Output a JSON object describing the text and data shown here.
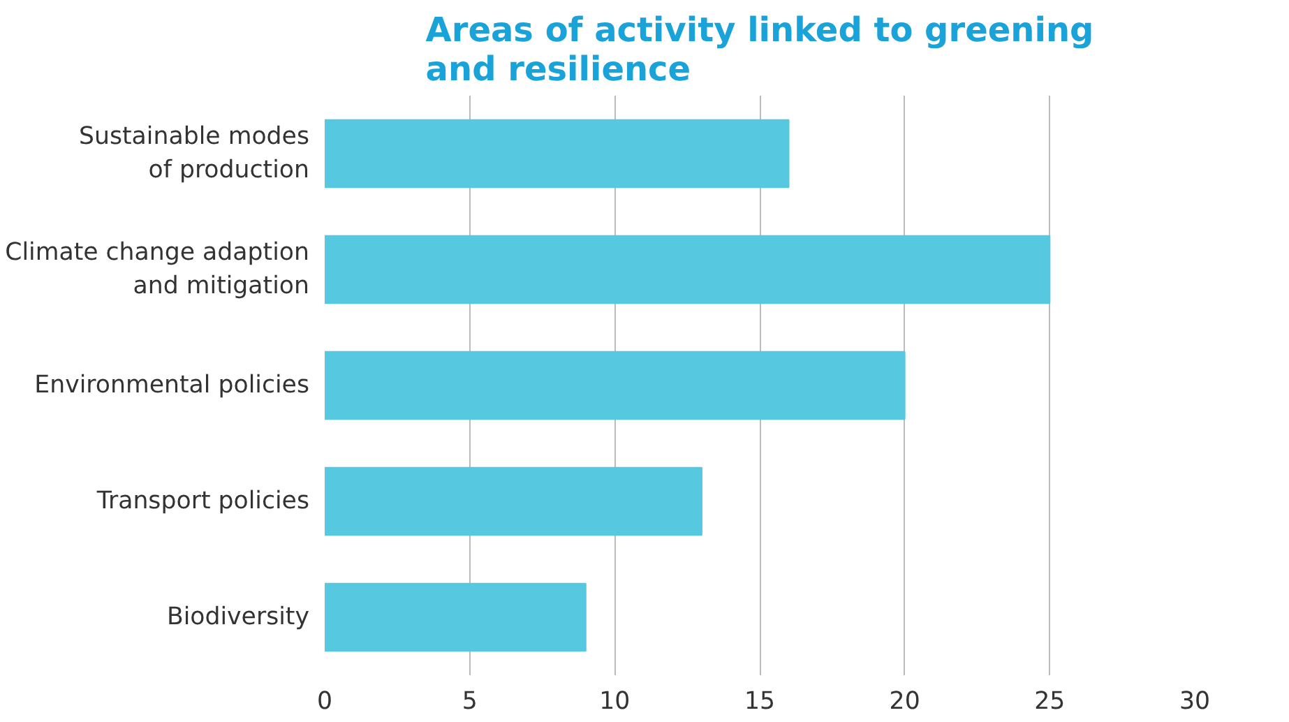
{
  "chart_data": {
    "type": "bar",
    "orientation": "horizontal",
    "title": "Areas of activity linked to greening\nand resilience",
    "categories": [
      "Sustainable modes\nof production",
      "Climate change adaption\nand mitigation",
      "Environmental policies",
      "Transport policies",
      "Biodiversity"
    ],
    "values": [
      16,
      25,
      20,
      13,
      9
    ],
    "color": "#56c8e0",
    "xlim": [
      0,
      30
    ],
    "xticks": [
      0,
      5,
      10,
      15,
      20,
      25,
      30
    ],
    "grid": "x"
  }
}
